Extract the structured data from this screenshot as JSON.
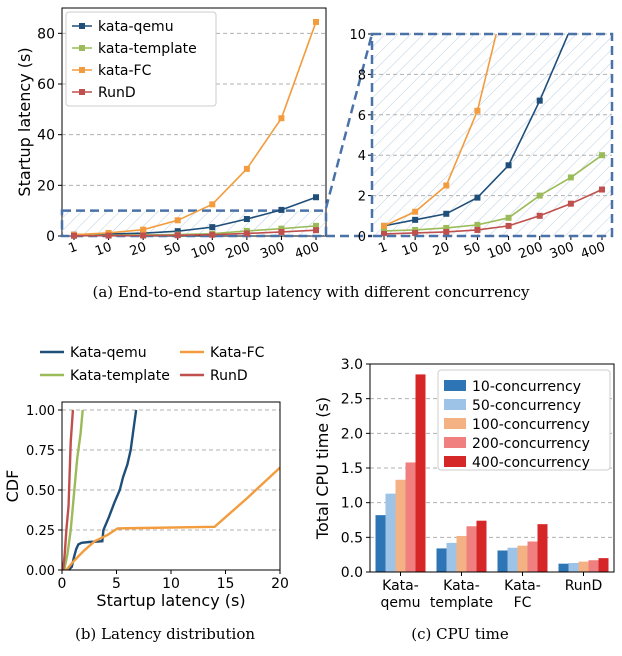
{
  "colors": {
    "kata_qemu": "#1f4e79",
    "kata_template": "#9bbb59",
    "kata_fc": "#f39c3e",
    "rund": "#c0504d",
    "c10": "#2e75b6",
    "c50": "#9dc3e6",
    "c100": "#f4b183",
    "c200": "#f08080",
    "c400": "#d62728"
  },
  "captions": {
    "a": "(a)  End-to-end startup latency with different concurrency",
    "b": "(b)  Latency distribution",
    "c": "(c)  CPU time"
  },
  "chart_data": [
    {
      "type": "line",
      "title": "",
      "xlabel": "",
      "ylabel": "Startup latency (s)",
      "ylim": [
        0,
        90
      ],
      "yticks": [
        0,
        20,
        40,
        60,
        80
      ],
      "categories": [
        "1",
        "10",
        "20",
        "50",
        "100",
        "200",
        "300",
        "400"
      ],
      "series": [
        {
          "name": "kata-qemu",
          "key": "kata_qemu",
          "marker": "s",
          "values": [
            0.5,
            0.8,
            1.1,
            1.9,
            3.5,
            6.7,
            10.3,
            15.3
          ]
        },
        {
          "name": "kata-template",
          "key": "kata_template",
          "marker": "s",
          "values": [
            0.25,
            0.3,
            0.4,
            0.55,
            0.9,
            2.0,
            2.9,
            4.0
          ]
        },
        {
          "name": "kata-FC",
          "key": "kata_fc",
          "marker": "s",
          "values": [
            0.5,
            1.2,
            2.5,
            6.2,
            12.5,
            26.5,
            46.5,
            84.5
          ]
        },
        {
          "name": "RunD",
          "key": "rund",
          "marker": "s",
          "values": [
            0.1,
            0.15,
            0.2,
            0.3,
            0.5,
            1.0,
            1.6,
            2.3
          ]
        }
      ],
      "zoom_region": [
        0,
        10
      ]
    },
    {
      "type": "line",
      "title": "",
      "xlabel": "",
      "ylabel": "",
      "ylim": [
        0,
        10
      ],
      "yticks": [
        0,
        2,
        4,
        6,
        8,
        10
      ],
      "categories": [
        "1",
        "10",
        "20",
        "50",
        "100",
        "200",
        "300",
        "400"
      ],
      "note": "zoomed view of the same series, y range 0-10"
    },
    {
      "type": "line",
      "title": "",
      "xlabel": "Startup latency (s)",
      "ylabel": "CDF",
      "xlim": [
        0,
        20
      ],
      "ylim": [
        0,
        1.05
      ],
      "xticks": [
        0,
        5,
        10,
        15,
        20
      ],
      "yticks": [
        "0.00",
        "0.25",
        "0.50",
        "0.75",
        "1.00"
      ],
      "series": [
        {
          "name": "Kata-qemu",
          "key": "kata_qemu",
          "points": [
            [
              0.6,
              0
            ],
            [
              0.9,
              0.02
            ],
            [
              1.1,
              0.08
            ],
            [
              1.3,
              0.13
            ],
            [
              1.5,
              0.16
            ],
            [
              1.8,
              0.17
            ],
            [
              2.5,
              0.175
            ],
            [
              3.7,
              0.18
            ],
            [
              3.8,
              0.25
            ],
            [
              4.3,
              0.33
            ],
            [
              4.8,
              0.42
            ],
            [
              5.3,
              0.5
            ],
            [
              5.6,
              0.58
            ],
            [
              6.0,
              0.66
            ],
            [
              6.3,
              0.75
            ],
            [
              6.5,
              0.85
            ],
            [
              6.8,
              1.0
            ]
          ]
        },
        {
          "name": "Kata-template",
          "key": "kata_template",
          "points": [
            [
              0.2,
              0
            ],
            [
              0.5,
              0.1
            ],
            [
              0.8,
              0.25
            ],
            [
              1.0,
              0.4
            ],
            [
              1.2,
              0.55
            ],
            [
              1.4,
              0.7
            ],
            [
              1.7,
              0.85
            ],
            [
              1.9,
              1.0
            ]
          ]
        },
        {
          "name": "Kata-FC",
          "key": "kata_fc",
          "points": [
            [
              0.4,
              0
            ],
            [
              1.0,
              0.05
            ],
            [
              2.0,
              0.12
            ],
            [
              3.0,
              0.18
            ],
            [
              4.2,
              0.22
            ],
            [
              5.1,
              0.26
            ],
            [
              14.0,
              0.27
            ],
            [
              17.0,
              0.45
            ],
            [
              20.0,
              0.64
            ]
          ]
        },
        {
          "name": "RunD",
          "key": "rund",
          "points": [
            [
              0.1,
              0
            ],
            [
              0.25,
              0.1
            ],
            [
              0.4,
              0.25
            ],
            [
              0.6,
              0.4
            ],
            [
              0.7,
              0.6
            ],
            [
              0.8,
              0.8
            ],
            [
              1.0,
              1.0
            ]
          ]
        }
      ],
      "legend": "top"
    },
    {
      "type": "bar",
      "title": "",
      "xlabel": "",
      "ylabel": "Total CPU time (s)",
      "ylim": [
        0,
        3.0
      ],
      "yticks": [
        "0.0",
        "0.5",
        "1.0",
        "1.5",
        "2.0",
        "2.5",
        "3.0"
      ],
      "categories": [
        "Kata-\nqemu",
        "Kata-\ntemplate",
        "Kata-\nFC",
        "RunD"
      ],
      "series": [
        {
          "name": "10-concurrency",
          "key": "c10",
          "values": [
            0.82,
            0.34,
            0.31,
            0.12
          ]
        },
        {
          "name": "50-concurrency",
          "key": "c50",
          "values": [
            1.13,
            0.42,
            0.35,
            0.13
          ]
        },
        {
          "name": "100-concurrency",
          "key": "c100",
          "values": [
            1.33,
            0.52,
            0.38,
            0.15
          ]
        },
        {
          "name": "200-concurrency",
          "key": "c200",
          "values": [
            1.58,
            0.66,
            0.44,
            0.17
          ]
        },
        {
          "name": "400-concurrency",
          "key": "c400",
          "values": [
            2.85,
            0.74,
            0.69,
            0.2
          ]
        }
      ],
      "legend": "top-right"
    }
  ]
}
